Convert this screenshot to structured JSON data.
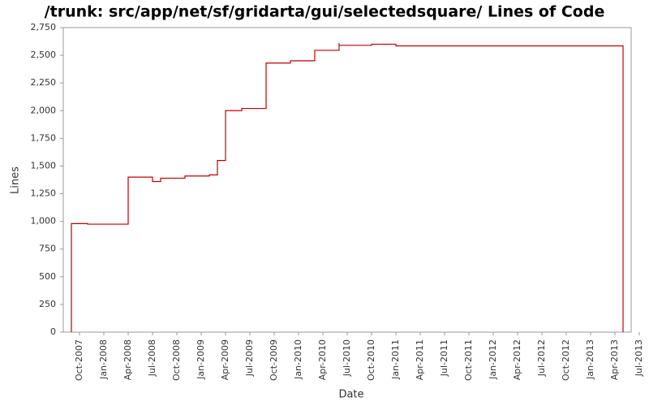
{
  "chart_data": {
    "type": "line",
    "title": "/trunk: src/app/net/sf/gridarta/gui/selectedsquare/ Lines of Code",
    "x_label": "Date",
    "y_label": "Lines",
    "x": [
      "Sep-2007",
      "Sep-2007",
      "Nov-2007",
      "Nov-2007",
      "Apr-2008",
      "Apr-2008",
      "Jul-2008",
      "Jul-2008",
      "Aug-2008",
      "Aug-2008",
      "Nov-2008",
      "Nov-2008",
      "Feb-2009",
      "Feb-2009",
      "Mar-2009",
      "Mar-2009",
      "Apr-2009",
      "Apr-2009",
      "Jun-2009",
      "Jun-2009",
      "Sep-2009",
      "Sep-2009",
      "Dec-2009",
      "Dec-2009",
      "Mar-2010",
      "Mar-2010",
      "Jun-2010",
      "Jun-2010",
      "Jun-2010",
      "Oct-2010",
      "Oct-2010",
      "Jan-2011",
      "Jan-2011",
      "May-2013",
      "May-2013"
    ],
    "series": [
      {
        "name": "Lines",
        "color": "#c00000",
        "values": [
          0,
          980,
          980,
          975,
          975,
          1400,
          1400,
          1360,
          1360,
          1390,
          1390,
          1410,
          1410,
          1420,
          1420,
          1550,
          1550,
          2000,
          2000,
          2020,
          2020,
          2430,
          2430,
          2450,
          2450,
          2545,
          2545,
          2610,
          2590,
          2590,
          2600,
          2600,
          2585,
          2585,
          0
        ]
      }
    ],
    "xlim": [
      "Aug-2007",
      "Jun-2013"
    ],
    "xticks": [
      "Oct-2007",
      "Jan-2008",
      "Apr-2008",
      "Jul-2008",
      "Oct-2008",
      "Jan-2009",
      "Apr-2009",
      "Jul-2009",
      "Oct-2009",
      "Jan-2010",
      "Apr-2010",
      "Jul-2010",
      "Oct-2010",
      "Jan-2011",
      "Apr-2011",
      "Jul-2011",
      "Oct-2011",
      "Jan-2012",
      "Apr-2012",
      "Jul-2012",
      "Oct-2012",
      "Jan-2013",
      "Apr-2013",
      "Jul-2013"
    ],
    "ylim": [
      0,
      2750
    ],
    "yticks": [
      0,
      250,
      500,
      750,
      {
        "value": 1000,
        "label": "1,000"
      },
      {
        "value": 1250,
        "label": "1,250"
      },
      {
        "value": 1500,
        "label": "1,500"
      },
      {
        "value": 1750,
        "label": "1,750"
      },
      {
        "value": 2000,
        "label": "2,000"
      },
      {
        "value": 2250,
        "label": "2,250"
      },
      {
        "value": 2500,
        "label": "2,500"
      },
      {
        "value": 2750,
        "label": "2,750"
      }
    ],
    "grid": false
  }
}
